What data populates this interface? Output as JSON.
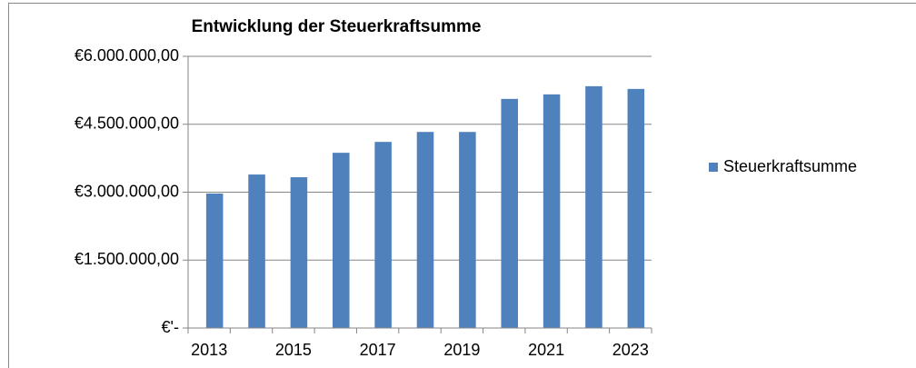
{
  "chart_data": {
    "type": "bar",
    "title": "Entwicklung der Steuerkraftsumme",
    "categories": [
      "2013",
      null,
      "2015",
      null,
      "2017",
      null,
      "2019",
      null,
      "2021",
      null,
      "2023"
    ],
    "series": [
      {
        "name": "Steuerkraftsumme",
        "color": "#4f81bd",
        "values": [
          2970000,
          3390000,
          3330000,
          3870000,
          4110000,
          4330000,
          4330000,
          5060000,
          5160000,
          5340000,
          5280000
        ]
      }
    ],
    "ylim": [
      0,
      6000000
    ],
    "yticks": [
      {
        "value": 0,
        "label": "€'-"
      },
      {
        "value": 1500000,
        "label": "€1.500.000,00"
      },
      {
        "value": 3000000,
        "label": "€3.000.000,00"
      },
      {
        "value": 4500000,
        "label": "€4.500.000,00"
      },
      {
        "value": 6000000,
        "label": "€6.000.000,00"
      }
    ],
    "grid": true,
    "legend": "right"
  }
}
